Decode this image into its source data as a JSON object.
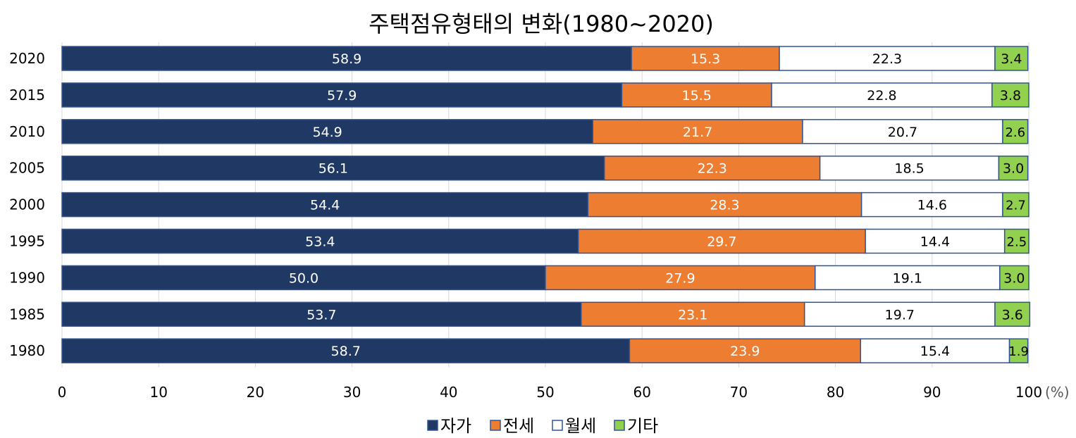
{
  "chart_data": {
    "type": "bar",
    "orientation": "horizontal",
    "stacked": true,
    "title": "주택점유형태의 변화(1980~2020)",
    "categories": [
      "2020",
      "2015",
      "2010",
      "2005",
      "2000",
      "1995",
      "1990",
      "1985",
      "1980"
    ],
    "series": [
      {
        "name": "자가",
        "color": "#203864",
        "label_color": "#ffffff",
        "values": [
          58.9,
          57.9,
          54.9,
          56.1,
          54.4,
          53.4,
          50.0,
          53.7,
          58.7
        ]
      },
      {
        "name": "전세",
        "color": "#ED7D31",
        "label_color": "#ffffff",
        "values": [
          15.3,
          15.5,
          21.7,
          22.3,
          28.3,
          29.7,
          27.9,
          23.1,
          23.9
        ]
      },
      {
        "name": "월세",
        "color": "#ffffff",
        "label_color": "#000000",
        "values": [
          22.3,
          22.8,
          20.7,
          18.5,
          14.6,
          14.4,
          19.1,
          19.7,
          15.4
        ]
      },
      {
        "name": "기타",
        "color": "#92D050",
        "label_color": "#000000",
        "values": [
          3.4,
          3.8,
          2.6,
          3.0,
          2.7,
          2.5,
          3.0,
          3.6,
          1.9
        ]
      }
    ],
    "xlim": [
      0,
      100
    ],
    "xticks": [
      "0",
      "10",
      "20",
      "30",
      "40",
      "50",
      "60",
      "70",
      "80",
      "90",
      "100"
    ],
    "xunit": "(%)",
    "grid": "vertical",
    "legend_position": "bottom",
    "bar_border_color": "#2F5597"
  }
}
